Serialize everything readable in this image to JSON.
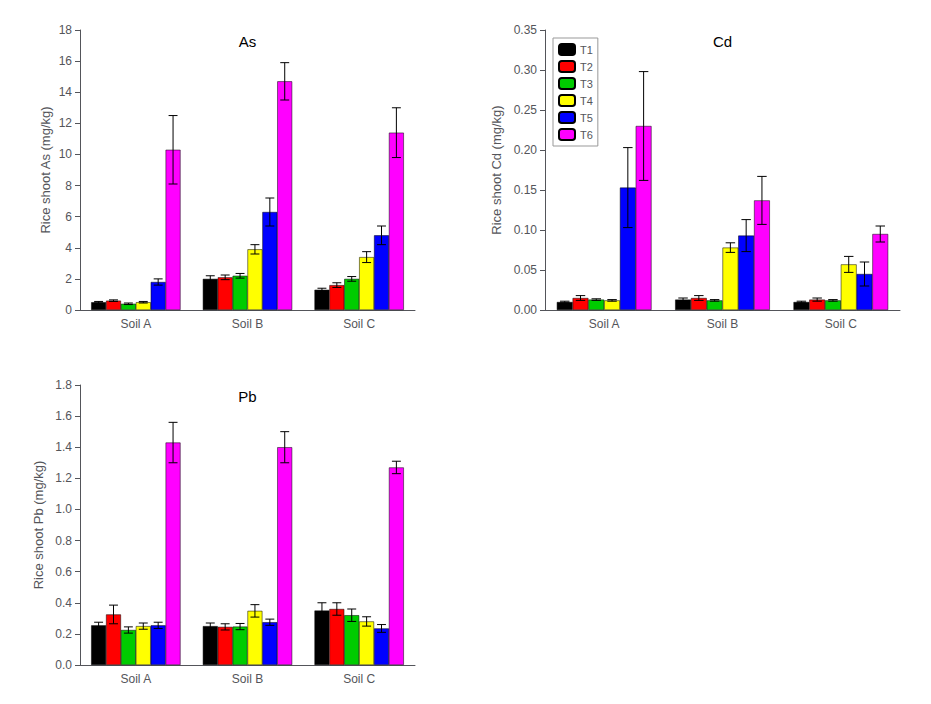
{
  "chart_data": [
    {
      "type": "bar",
      "ylabel": "Rice shoot As (mg/kg)",
      "categories": [
        "Soil A",
        "Soil B",
        "Soil C"
      ],
      "series": [
        {
          "name": "T1",
          "color": "#000000",
          "values": [
            0.5,
            2.0,
            1.3
          ],
          "errors": [
            0.05,
            0.2,
            0.1
          ]
        },
        {
          "name": "T2",
          "color": "#ff0000",
          "values": [
            0.6,
            2.1,
            1.6
          ],
          "errors": [
            0.05,
            0.15,
            0.15
          ]
        },
        {
          "name": "T3",
          "color": "#00cc00",
          "values": [
            0.4,
            2.2,
            2.0
          ],
          "errors": [
            0.05,
            0.15,
            0.15
          ]
        },
        {
          "name": "T4",
          "color": "#ffff00",
          "values": [
            0.5,
            3.9,
            3.4
          ],
          "errors": [
            0.05,
            0.3,
            0.35
          ]
        },
        {
          "name": "T5",
          "color": "#0000ff",
          "values": [
            1.8,
            6.3,
            4.8
          ],
          "errors": [
            0.2,
            0.9,
            0.6
          ]
        },
        {
          "name": "T6",
          "color": "#ff00ff",
          "values": [
            10.3,
            14.7,
            11.4
          ],
          "errors": [
            2.2,
            1.2,
            1.6
          ]
        }
      ],
      "ylim": [
        0,
        18
      ],
      "yticks": [
        0,
        2,
        4,
        6,
        8,
        10,
        12,
        14,
        16,
        18
      ],
      "annotations": [
        "As"
      ],
      "grid": false
    },
    {
      "type": "bar",
      "ylabel": "Rice shoot Cd (mg/kg)",
      "categories": [
        "Soil A",
        "Soil B",
        "Soil C"
      ],
      "series": [
        {
          "name": "T1",
          "color": "#000000",
          "values": [
            0.01,
            0.013,
            0.01
          ],
          "errors": [
            0.001,
            0.002,
            0.001
          ]
        },
        {
          "name": "T2",
          "color": "#ff0000",
          "values": [
            0.015,
            0.015,
            0.013
          ],
          "errors": [
            0.003,
            0.003,
            0.002
          ]
        },
        {
          "name": "T3",
          "color": "#00cc00",
          "values": [
            0.013,
            0.012,
            0.012
          ],
          "errors": [
            0.001,
            0.001,
            0.001
          ]
        },
        {
          "name": "T4",
          "color": "#ffff00",
          "values": [
            0.012,
            0.078,
            0.057
          ],
          "errors": [
            0.001,
            0.006,
            0.01
          ]
        },
        {
          "name": "T5",
          "color": "#0000ff",
          "values": [
            0.153,
            0.093,
            0.045
          ],
          "errors": [
            0.05,
            0.02,
            0.015
          ]
        },
        {
          "name": "T6",
          "color": "#ff00ff",
          "values": [
            0.23,
            0.137,
            0.095
          ],
          "errors": [
            0.068,
            0.03,
            0.01
          ]
        }
      ],
      "ylim": [
        0,
        0.35
      ],
      "yticks": [
        {
          "value": 0,
          "label": "0.00"
        },
        0.05,
        {
          "value": 0.1,
          "label": "0.10"
        },
        0.15,
        {
          "value": 0.2,
          "label": "0.20"
        },
        0.25,
        {
          "value": 0.3,
          "label": "0.30"
        },
        0.35
      ],
      "annotations": [
        "Cd"
      ],
      "legend": "upper left",
      "grid": false
    },
    {
      "type": "bar",
      "ylabel": "Rice shoot Pb (mg/kg)",
      "categories": [
        "Soil A",
        "Soil B",
        "Soil C"
      ],
      "series": [
        {
          "name": "T1",
          "color": "#000000",
          "values": [
            0.255,
            0.25,
            0.35
          ],
          "errors": [
            0.02,
            0.02,
            0.05
          ]
        },
        {
          "name": "T2",
          "color": "#ff0000",
          "values": [
            0.325,
            0.245,
            0.36
          ],
          "errors": [
            0.06,
            0.02,
            0.04
          ]
        },
        {
          "name": "T3",
          "color": "#00cc00",
          "values": [
            0.225,
            0.247,
            0.32
          ],
          "errors": [
            0.02,
            0.02,
            0.04
          ]
        },
        {
          "name": "T4",
          "color": "#ffff00",
          "values": [
            0.25,
            0.348,
            0.28
          ],
          "errors": [
            0.02,
            0.04,
            0.03
          ]
        },
        {
          "name": "T5",
          "color": "#0000ff",
          "values": [
            0.255,
            0.275,
            0.235
          ],
          "errors": [
            0.02,
            0.02,
            0.025
          ]
        },
        {
          "name": "T6",
          "color": "#ff00ff",
          "values": [
            1.43,
            1.4,
            1.27
          ],
          "errors": [
            0.13,
            0.1,
            0.04
          ]
        }
      ],
      "ylim": [
        0,
        1.8
      ],
      "yticks": [
        {
          "value": 0,
          "label": "0.0"
        },
        0.2,
        0.4,
        0.6,
        0.8,
        {
          "value": 1,
          "label": "1.0"
        },
        1.2,
        1.4,
        1.6,
        1.8
      ],
      "annotations": [
        "Pb"
      ],
      "grid": false
    }
  ]
}
